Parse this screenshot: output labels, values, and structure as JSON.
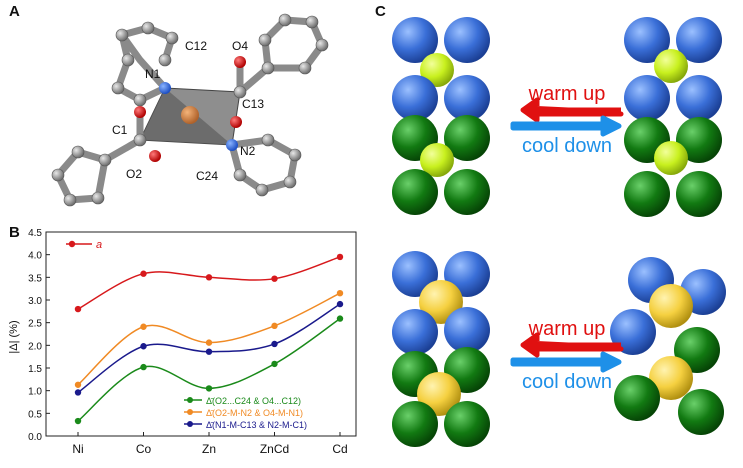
{
  "panels": {
    "a": {
      "letter": "A"
    },
    "b": {
      "letter": "B"
    },
    "c": {
      "letter": "C"
    }
  },
  "molecule": {
    "atom_labels": [
      "C12",
      "O4",
      "N1",
      "C13",
      "C1",
      "N2",
      "O2",
      "C24"
    ]
  },
  "chart_data": {
    "type": "line",
    "categories": [
      "Ni",
      "Co",
      "Zn",
      "ZnCd",
      "Cd"
    ],
    "ylabel": "|Δ| (%)",
    "ylim": [
      0.0,
      4.5
    ],
    "yticks": [
      "0.0",
      "0.5",
      "1.0",
      "1.5",
      "2.0",
      "2.5",
      "3.0",
      "3.5",
      "4.0",
      "4.5"
    ],
    "grid": false,
    "smooth": true,
    "series": [
      {
        "name": "a",
        "color": "#d7191c",
        "values": [
          2.8,
          3.58,
          3.5,
          3.47,
          3.95
        ]
      },
      {
        "name": "Δ̄(O2-M-N2 & O4-M-N1)",
        "color": "#f08a24",
        "values": [
          1.13,
          2.41,
          2.06,
          2.43,
          3.15
        ]
      },
      {
        "name": "Δ̄(N1-M-C13 & N2-M-C1)",
        "color": "#1a1a8c",
        "values": [
          0.96,
          1.98,
          1.86,
          2.03,
          2.91
        ]
      },
      {
        "name": "Δ̄(O2...C24 & O4...C12)",
        "color": "#1a8a1a",
        "values": [
          0.33,
          1.52,
          1.05,
          1.59,
          2.59
        ]
      }
    ],
    "legend_top": {
      "position": "top-left",
      "entries": [
        "a"
      ]
    },
    "legend_bottom": {
      "position": "bottom-right",
      "entries": [
        "Δ̄(O2...C24 & O4...C12)",
        "Δ̄(O2-M-N2 & O4-M-N1)",
        "Δ̄(N1-M-C13 & N2-M-C1)"
      ],
      "colors": [
        "#1a8a1a",
        "#f08a24",
        "#1a1a8c"
      ]
    }
  },
  "stacks": {
    "row1": {
      "warm_label": "warm up",
      "cool_label": "cool down",
      "center_color": "#c8f01e"
    },
    "row2": {
      "warm_label": "warm up",
      "cool_label": "cool down",
      "center_color": "#f5d040"
    },
    "colors": {
      "blue": "#3a6fd8",
      "green": "#127a12",
      "warm": "#e01010",
      "cool": "#1e90e8"
    }
  }
}
